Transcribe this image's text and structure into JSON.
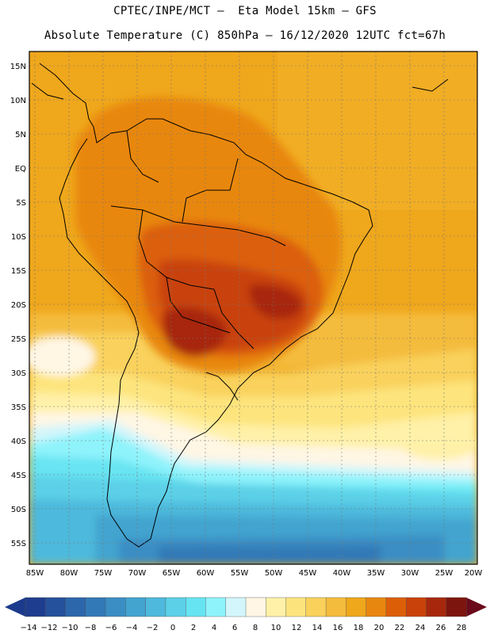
{
  "header": {
    "line1": "CPTEC/INPE/MCT –  Eta Model 15km – GFS",
    "line2": "Absolute Temperature (C) 850hPa – 16/12/2020 12UTC fct=67h"
  },
  "map": {
    "lat_labels": [
      "15N",
      "10N",
      "5N",
      "EQ",
      "5S",
      "10S",
      "15S",
      "20S",
      "25S",
      "30S",
      "35S",
      "40S",
      "45S",
      "50S",
      "55S"
    ],
    "lon_labels": [
      "85W",
      "80W",
      "75W",
      "70W",
      "65W",
      "60W",
      "55W",
      "50W",
      "45W",
      "40W",
      "35W",
      "30W",
      "25W",
      "20W"
    ]
  },
  "colorbar": {
    "labels": [
      "-14",
      "-12",
      "-10",
      "-8",
      "-6",
      "-4",
      "-2",
      "0",
      "2",
      "4",
      "6",
      "8",
      "10",
      "12",
      "14",
      "16",
      "18",
      "20",
      "22",
      "24",
      "26",
      "28"
    ],
    "under_color": "#1c3a8c",
    "over_color": "#6a0a1a",
    "colors": [
      "#1f3d8e",
      "#25509b",
      "#2c66ab",
      "#3279b7",
      "#3a8ec4",
      "#43a4cf",
      "#4eb9dc",
      "#5bd0e7",
      "#67e4f2",
      "#8ff3fb",
      "#d2f6fb",
      "#fff6e4",
      "#fff1a8",
      "#fde47d",
      "#f9d15b",
      "#f4bc3c",
      "#efa71c",
      "#e8870f",
      "#dc5f08",
      "#c9420a",
      "#a7270c",
      "#7c150e"
    ]
  }
}
